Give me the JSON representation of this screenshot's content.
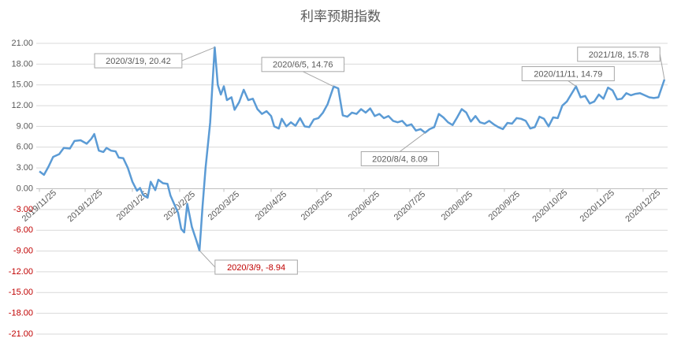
{
  "chart_data": {
    "type": "line",
    "title": "利率预期指数",
    "x": [
      "2019/11/25",
      "2019/11/28",
      "2019/12/1",
      "2019/12/4",
      "2019/12/8",
      "2019/12/11",
      "2019/12/15",
      "2019/12/18",
      "2019/12/22",
      "2019/12/26",
      "2019/12/29",
      "2019/12/31",
      "2020/1/3",
      "2020/1/6",
      "2020/1/8",
      "2020/1/11",
      "2020/1/14",
      "2020/1/16",
      "2020/1/19",
      "2020/1/22",
      "2020/1/25",
      "2020/1/28",
      "2020/1/30",
      "2020/2/1",
      "2020/2/4",
      "2020/2/6",
      "2020/2/9",
      "2020/2/11",
      "2020/2/14",
      "2020/2/17",
      "2020/2/19",
      "2020/2/21",
      "2020/2/24",
      "2020/2/26",
      "2020/2/28",
      "2020/3/1",
      "2020/3/4",
      "2020/3/7",
      "2020/3/9",
      "2020/3/11",
      "2020/3/13",
      "2020/3/16",
      "2020/3/19",
      "2020/3/21",
      "2020/3/23",
      "2020/3/25",
      "2020/3/27",
      "2020/3/30",
      "2020/4/1",
      "2020/4/4",
      "2020/4/7",
      "2020/4/10",
      "2020/4/13",
      "2020/4/16",
      "2020/4/19",
      "2020/4/22",
      "2020/4/25",
      "2020/4/27",
      "2020/4/30",
      "2020/5/2",
      "2020/5/5",
      "2020/5/8",
      "2020/5/11",
      "2020/5/14",
      "2020/5/17",
      "2020/5/20",
      "2020/5/23",
      "2020/5/26",
      "2020/5/29",
      "2020/6/1",
      "2020/6/5",
      "2020/6/8",
      "2020/6/11",
      "2020/6/14",
      "2020/6/17",
      "2020/6/20",
      "2020/6/23",
      "2020/6/26",
      "2020/6/29",
      "2020/7/2",
      "2020/7/5",
      "2020/7/8",
      "2020/7/11",
      "2020/7/14",
      "2020/7/17",
      "2020/7/20",
      "2020/7/23",
      "2020/7/26",
      "2020/7/29",
      "2020/8/1",
      "2020/8/4",
      "2020/8/7",
      "2020/8/10",
      "2020/8/13",
      "2020/8/16",
      "2020/8/19",
      "2020/8/22",
      "2020/8/25",
      "2020/8/28",
      "2020/8/31",
      "2020/9/3",
      "2020/9/6",
      "2020/9/9",
      "2020/9/12",
      "2020/9/15",
      "2020/9/18",
      "2020/9/21",
      "2020/9/24",
      "2020/9/27",
      "2020/9/30",
      "2020/10/3",
      "2020/10/6",
      "2020/10/9",
      "2020/10/12",
      "2020/10/15",
      "2020/10/18",
      "2020/10/21",
      "2020/10/24",
      "2020/10/27",
      "2020/10/30",
      "2020/11/2",
      "2020/11/5",
      "2020/11/11",
      "2020/11/14",
      "2020/11/17",
      "2020/11/20",
      "2020/11/23",
      "2020/11/26",
      "2020/11/29",
      "2020/12/2",
      "2020/12/5",
      "2020/12/8",
      "2020/12/11",
      "2020/12/14",
      "2020/12/17",
      "2020/12/20",
      "2020/12/23",
      "2020/12/26",
      "2020/12/29",
      "2021/1/1",
      "2021/1/4",
      "2021/1/8"
    ],
    "series": [
      {
        "color": "#5b9bd5",
        "values": [
          2.5,
          2.0,
          3.2,
          4.6,
          5.0,
          5.9,
          5.8,
          6.9,
          7.0,
          6.5,
          7.2,
          7.9,
          5.5,
          5.3,
          5.9,
          5.5,
          5.4,
          4.5,
          4.4,
          3.0,
          1.0,
          -0.3,
          0.1,
          -0.9,
          -1.3,
          1.0,
          -0.2,
          1.3,
          0.8,
          0.7,
          -1.0,
          -2.0,
          -3.5,
          -5.8,
          -6.3,
          -2.2,
          -5.5,
          -7.5,
          -8.94,
          -2.5,
          3.0,
          9.5,
          20.42,
          15.0,
          13.6,
          14.8,
          12.8,
          13.2,
          11.4,
          12.5,
          14.3,
          12.8,
          13.0,
          11.5,
          10.8,
          11.2,
          10.5,
          9.0,
          8.7,
          10.1,
          9.0,
          9.6,
          9.1,
          10.2,
          9.0,
          8.9,
          10.0,
          10.2,
          11.0,
          12.2,
          14.76,
          14.5,
          10.6,
          10.4,
          11.0,
          10.8,
          11.5,
          11.0,
          11.6,
          10.5,
          10.8,
          10.2,
          10.5,
          9.8,
          9.6,
          9.8,
          9.1,
          9.3,
          8.4,
          8.6,
          8.09,
          8.6,
          8.9,
          10.8,
          10.3,
          9.6,
          9.2,
          10.3,
          11.5,
          11.0,
          9.7,
          10.5,
          9.6,
          9.4,
          9.8,
          9.3,
          8.9,
          8.6,
          9.5,
          9.4,
          10.2,
          10.1,
          9.8,
          8.7,
          8.9,
          10.4,
          10.1,
          9.0,
          10.3,
          10.2,
          12.0,
          12.6,
          14.79,
          13.2,
          13.4,
          12.3,
          12.6,
          13.6,
          13.0,
          14.6,
          14.2,
          12.9,
          13.0,
          13.8,
          13.5,
          13.7,
          13.8,
          13.5,
          13.2,
          13.1,
          13.2,
          15.78
        ],
        "value_labels": [
          null,
          null,
          null,
          null,
          null,
          null,
          null,
          null,
          null,
          null,
          null,
          null,
          null,
          null,
          null,
          null,
          null,
          null,
          null,
          null,
          null,
          null,
          null,
          null,
          null,
          null,
          null,
          null,
          null,
          null,
          null,
          null,
          null,
          null,
          null,
          null,
          null,
          null,
          "2020/3/9, -8.94",
          null,
          null,
          null,
          "2020/3/19, 20.42",
          null,
          null,
          null,
          null,
          null,
          null,
          null,
          null,
          null,
          null,
          null,
          null,
          null,
          null,
          null,
          null,
          null,
          null,
          null,
          null,
          null,
          null,
          null,
          null,
          null,
          null,
          null,
          "2020/6/5, 14.76",
          null,
          null,
          null,
          null,
          null,
          null,
          null,
          null,
          null,
          null,
          null,
          null,
          null,
          null,
          null,
          null,
          null,
          null,
          null,
          "2020/8/4, 8.09",
          null,
          null,
          null,
          null,
          null,
          null,
          null,
          null,
          null,
          null,
          null,
          null,
          null,
          null,
          null,
          null,
          null,
          null,
          null,
          null,
          null,
          null,
          null,
          null,
          null,
          null,
          null,
          null,
          null,
          null,
          null,
          "2020/11/11, 14.79",
          null,
          null,
          null,
          null,
          null,
          null,
          null,
          null,
          null,
          null,
          null,
          null,
          null,
          null,
          null,
          null,
          null,
          null,
          "2021/1/8, 15.78"
        ]
      }
    ],
    "xlim": [
      "2019/11/25",
      "2021/1/8"
    ],
    "xticks": [
      "2019/11/25",
      "2019/12/25",
      "2020/1/25",
      "2020/2/25",
      "2020/3/25",
      "2020/4/25",
      "2020/5/25",
      "2020/6/25",
      "2020/7/25",
      "2020/8/25",
      "2020/9/25",
      "2020/10/25",
      "2020/11/25",
      "2020/12/25"
    ],
    "ylim": [
      -21,
      21
    ],
    "yticks": [
      {
        "value": 21,
        "label": "21.00"
      },
      {
        "value": 18,
        "label": "18.00"
      },
      {
        "value": 15,
        "label": "15.00"
      },
      {
        "value": 12,
        "label": "12.00"
      },
      {
        "value": 9,
        "label": "9.00"
      },
      {
        "value": 6,
        "label": "6.00"
      },
      {
        "value": 3,
        "label": "3.00"
      },
      {
        "value": 0,
        "label": "0.00"
      },
      {
        "value": -3,
        "label": "-3.00"
      },
      {
        "value": -6,
        "label": "-6.00"
      },
      {
        "value": -9,
        "label": "-9.00"
      },
      {
        "value": -12,
        "label": "-12.00"
      },
      {
        "value": -15,
        "label": "-15.00"
      },
      {
        "value": -18,
        "label": "-18.00"
      },
      {
        "value": -21,
        "label": "-21.00"
      }
    ],
    "grid": true,
    "negative_label_color": "#c00000"
  }
}
